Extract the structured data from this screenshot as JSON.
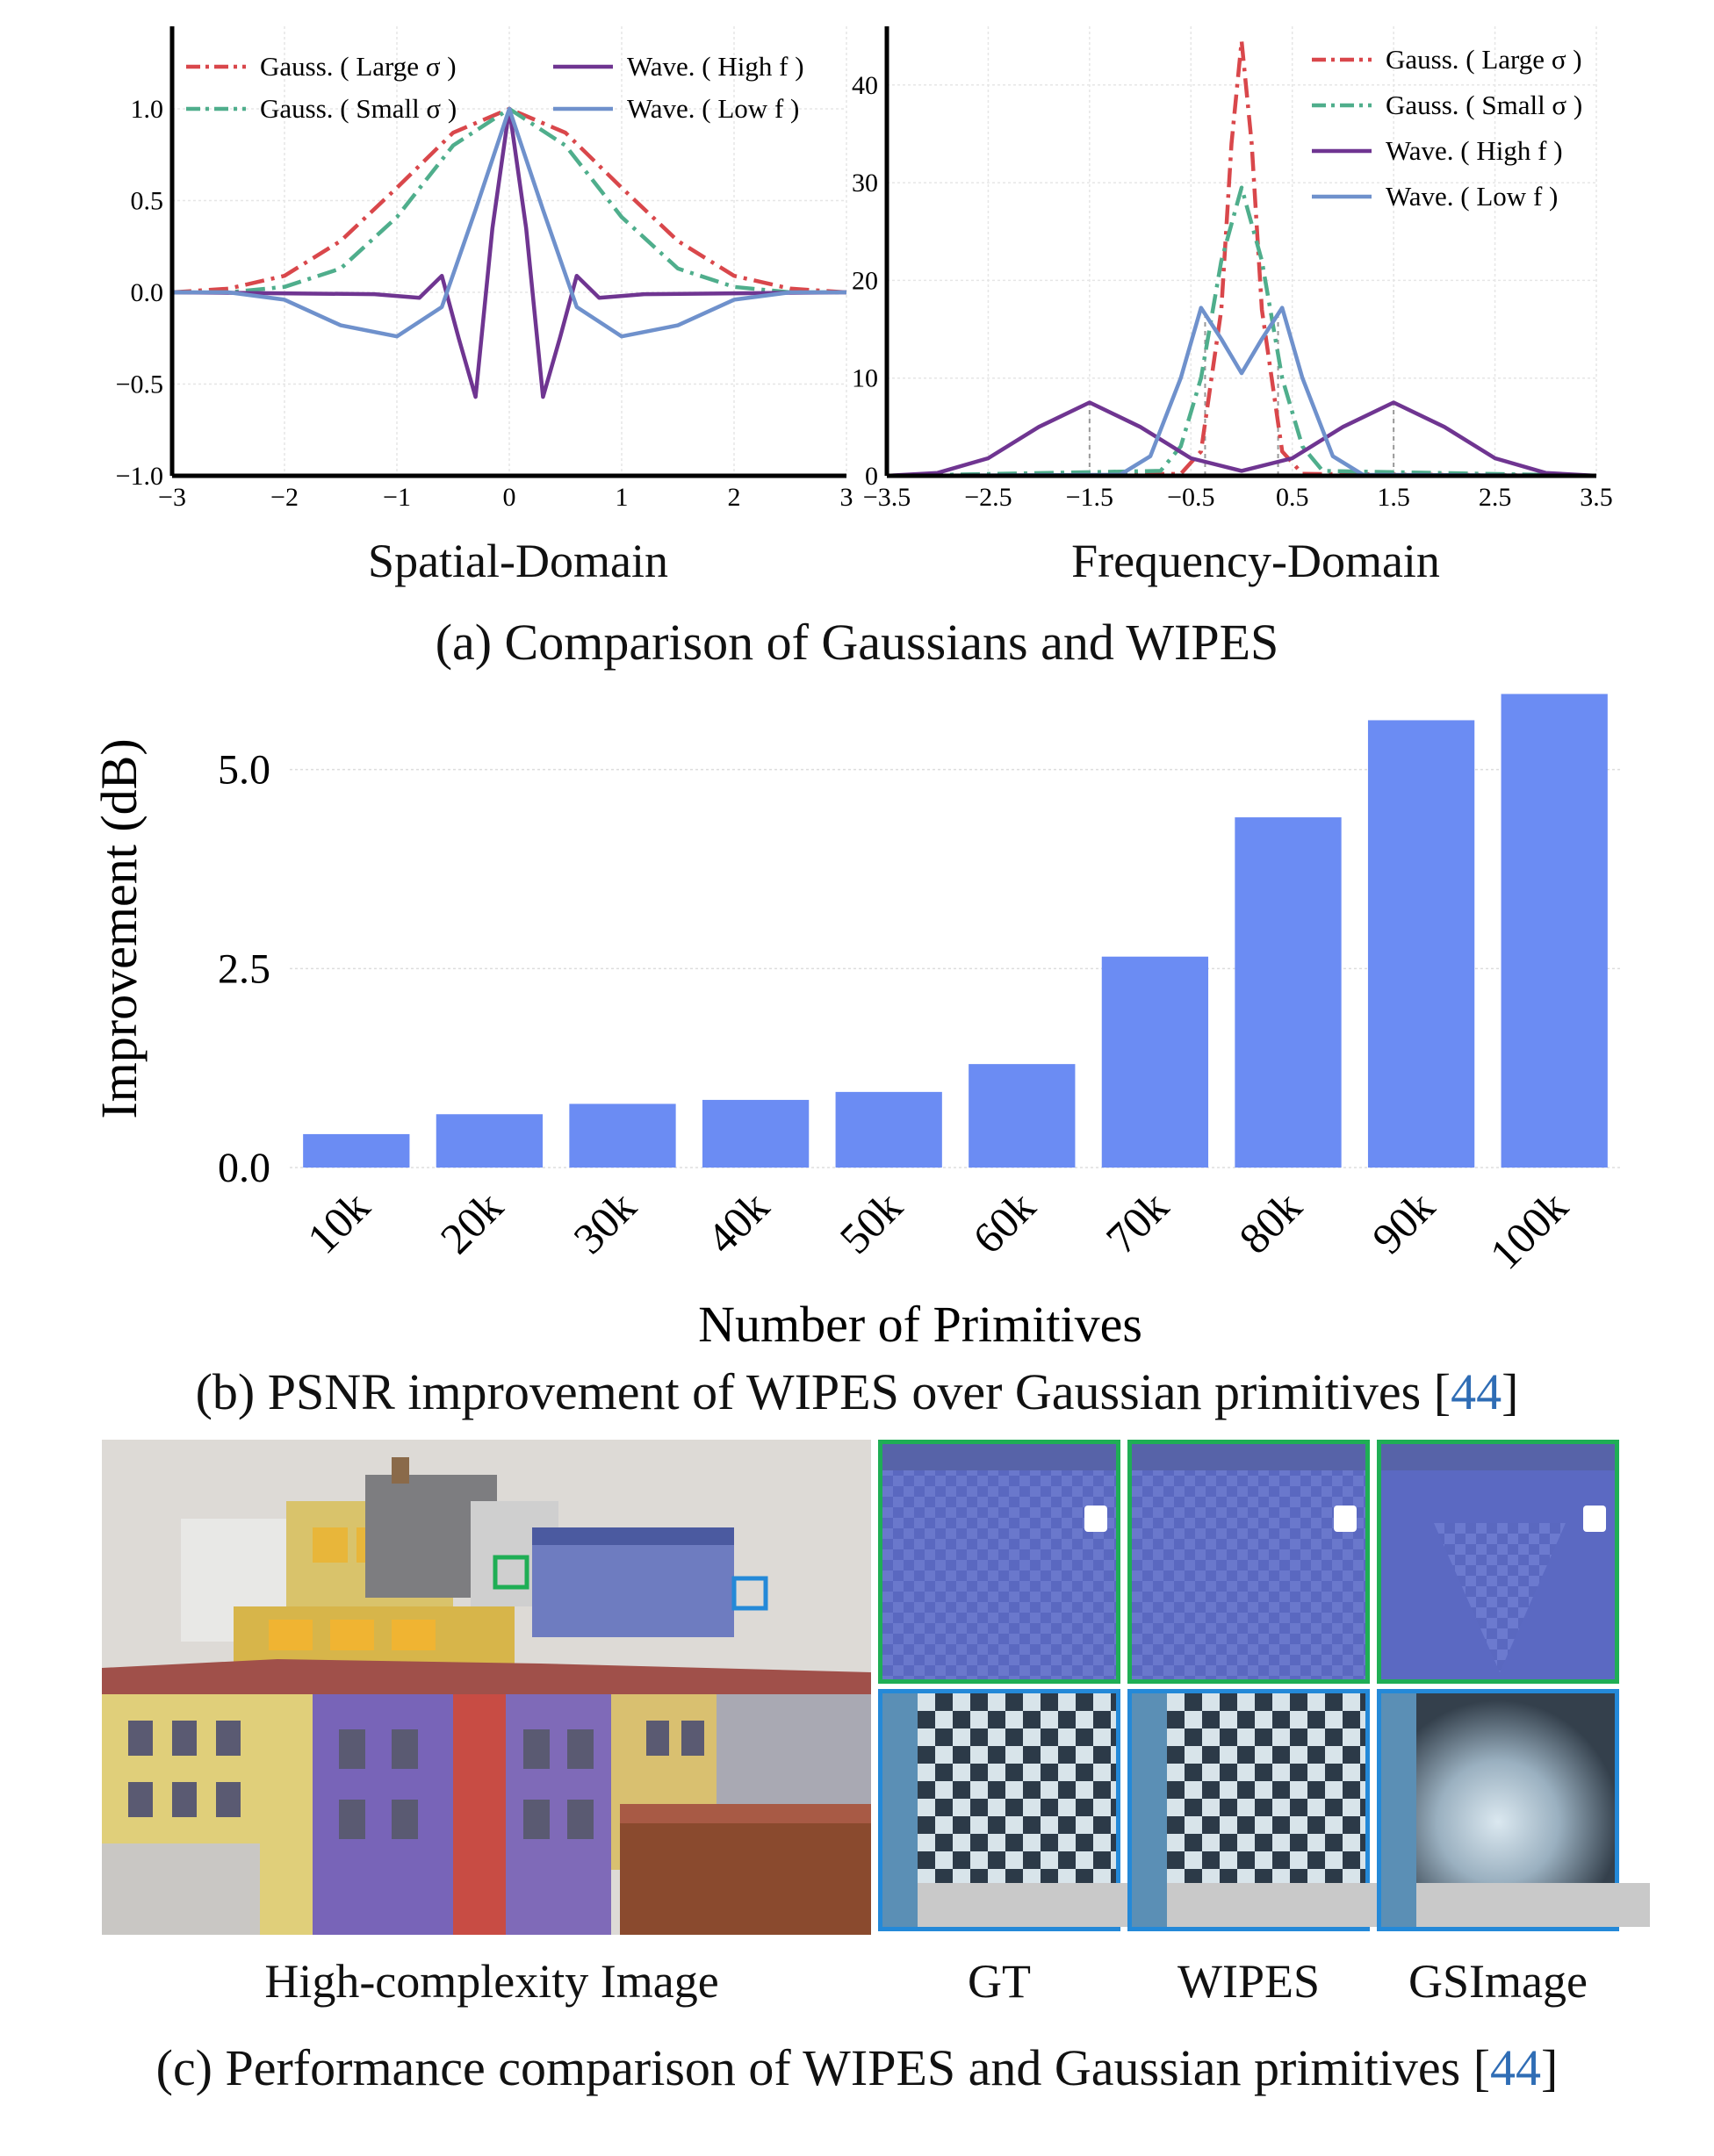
{
  "panel_a": {
    "caption": "(a) Comparison of Gaussians and WIPES",
    "spatial_title": "Spatial-Domain",
    "frequency_title": "Frequency-Domain"
  },
  "panel_b": {
    "caption_prefix": "(b) PSNR improvement of WIPES over Gaussian primitives [",
    "caption_ref": "44",
    "caption_suffix": "]"
  },
  "panel_c": {
    "caption_prefix": "(c) Performance comparison of WIPES and Gaussian primitives [",
    "caption_ref": "44",
    "caption_suffix": "]",
    "image_label": "High-complexity Image",
    "labels": [
      "GT",
      "WIPES",
      "GSImage"
    ]
  },
  "colors": {
    "gauss_large": "#d9474b",
    "gauss_small": "#4fae8c",
    "wave_high": "#6f3591",
    "wave_low": "#6f91cc",
    "bar": "#6b8cf3",
    "green_box": "#1fae55",
    "blue_box": "#2489d8"
  },
  "chart_data": [
    {
      "type": "line",
      "title": "Spatial-Domain",
      "xlim": [
        -3,
        3
      ],
      "ylim": [
        -1.0,
        1.45
      ],
      "xticks": [
        -3,
        -2,
        -1,
        0,
        1,
        2,
        3
      ],
      "xtick_labels": [
        "−3",
        "−2",
        "−1",
        "0",
        "1",
        "2",
        "3"
      ],
      "yticks": [
        -1.0,
        -0.5,
        0.0,
        0.5,
        1.0
      ],
      "ytick_labels": [
        "−1.0",
        "−0.5",
        "0.0",
        "0.5",
        "1.0"
      ],
      "legend": [
        "Gauss. ( Large σ )",
        "Gauss. ( Small σ )",
        "Wave. ( High f )",
        "Wave. ( Low f )"
      ],
      "series": [
        {
          "name": "Gauss. ( Large σ )",
          "color": "#d9474b",
          "dash": "dashdot",
          "x": [
            -3,
            -2.5,
            -2,
            -1.5,
            -1,
            -0.5,
            0,
            0.5,
            1,
            1.5,
            2,
            2.5,
            3
          ],
          "y": [
            0.0,
            0.02,
            0.09,
            0.28,
            0.57,
            0.87,
            1.0,
            0.87,
            0.57,
            0.28,
            0.09,
            0.02,
            0.0
          ]
        },
        {
          "name": "Gauss. ( Small σ )",
          "color": "#4fae8c",
          "dash": "dashdot",
          "x": [
            -3,
            -2.5,
            -2,
            -1.5,
            -1,
            -0.5,
            0,
            0.5,
            1,
            1.5,
            2,
            2.5,
            3
          ],
          "y": [
            0.0,
            0.0,
            0.03,
            0.13,
            0.41,
            0.8,
            1.0,
            0.8,
            0.41,
            0.13,
            0.03,
            0.0,
            0.0
          ]
        },
        {
          "name": "Wave. ( High f )",
          "color": "#6f3591",
          "dash": "solid",
          "x": [
            -3,
            -1.2,
            -0.8,
            -0.6,
            -0.45,
            -0.3,
            -0.15,
            0,
            0.15,
            0.3,
            0.45,
            0.6,
            0.8,
            1.2,
            3
          ],
          "y": [
            0.0,
            -0.01,
            -0.03,
            0.09,
            -0.25,
            -0.57,
            0.35,
            1.0,
            0.35,
            -0.57,
            -0.25,
            0.09,
            -0.03,
            -0.01,
            0.0
          ]
        },
        {
          "name": "Wave. ( Low f )",
          "color": "#6f91cc",
          "dash": "solid",
          "x": [
            -3,
            -2.5,
            -2,
            -1.5,
            -1,
            -0.6,
            -0.3,
            0,
            0.3,
            0.6,
            1,
            1.5,
            2,
            2.5,
            3
          ],
          "y": [
            0.0,
            0.0,
            -0.04,
            -0.18,
            -0.24,
            -0.08,
            0.45,
            1.0,
            0.45,
            -0.08,
            -0.24,
            -0.18,
            -0.04,
            0.0,
            0.0
          ]
        }
      ]
    },
    {
      "type": "line",
      "title": "Frequency-Domain",
      "xlim": [
        -3.5,
        3.5
      ],
      "ylim": [
        0,
        46
      ],
      "xticks": [
        -3.5,
        -2.5,
        -1.5,
        -0.5,
        0.5,
        1.5,
        2.5,
        3.5
      ],
      "xtick_labels": [
        "−3.5",
        "−2.5",
        "−1.5",
        "−0.5",
        "0.5",
        "1.5",
        "2.5",
        "3.5"
      ],
      "yticks": [
        0,
        10,
        20,
        30,
        40
      ],
      "ytick_labels": [
        "0",
        "10",
        "20",
        "30",
        "40"
      ],
      "legend": [
        "Gauss. ( Large σ )",
        "Gauss. ( Small σ )",
        "Wave. ( High f )",
        "Wave. ( Low f )"
      ],
      "series": [
        {
          "name": "Gauss. ( Large σ )",
          "color": "#d9474b",
          "dash": "dashdot",
          "x": [
            -3.5,
            -0.6,
            -0.4,
            -0.2,
            -0.1,
            0,
            0.1,
            0.2,
            0.4,
            0.6,
            3.5
          ],
          "y": [
            0,
            0.2,
            2.5,
            17,
            34,
            44.5,
            34,
            17,
            2.5,
            0.2,
            0
          ]
        },
        {
          "name": "Gauss. ( Small σ )",
          "color": "#4fae8c",
          "dash": "dashdot",
          "x": [
            -3.5,
            -0.8,
            -0.6,
            -0.4,
            -0.2,
            0,
            0.2,
            0.4,
            0.6,
            0.8,
            3.5
          ],
          "y": [
            0,
            0.5,
            3,
            10,
            22,
            29.5,
            22,
            10,
            3,
            0.5,
            0
          ]
        },
        {
          "name": "Wave. ( High f )",
          "color": "#6f3591",
          "dash": "solid",
          "x": [
            -3.5,
            -3,
            -2.5,
            -2,
            -1.5,
            -1,
            -0.5,
            0,
            0.5,
            1,
            1.5,
            2,
            2.5,
            3,
            3.5
          ],
          "y": [
            0,
            0.3,
            1.8,
            5.0,
            7.5,
            5.0,
            1.8,
            0.5,
            1.8,
            5.0,
            7.5,
            5.0,
            1.8,
            0.3,
            0
          ]
        },
        {
          "name": "Wave. ( Low f )",
          "color": "#6f91cc",
          "dash": "solid",
          "x": [
            -3.5,
            -1.2,
            -0.9,
            -0.6,
            -0.4,
            -0.2,
            0,
            0.2,
            0.4,
            0.6,
            0.9,
            1.2,
            3.5
          ],
          "y": [
            0,
            0.1,
            2,
            10,
            17.2,
            14,
            10.5,
            14,
            17.2,
            10,
            2,
            0.1,
            0
          ]
        }
      ],
      "guides_x": [
        -1.5,
        -0.36,
        0.36,
        1.5
      ]
    },
    {
      "type": "bar",
      "categories": [
        "10k",
        "20k",
        "30k",
        "40k",
        "50k",
        "60k",
        "70k",
        "80k",
        "90k",
        "100k"
      ],
      "values": [
        0.42,
        0.67,
        0.8,
        0.85,
        0.95,
        1.3,
        2.65,
        4.4,
        5.62,
        5.95
      ],
      "ylabel": "Improvement (dB)",
      "xlabel": "Number of Primitives",
      "ylim": [
        0,
        6.0
      ],
      "yticks": [
        0.0,
        2.5,
        5.0
      ],
      "ytick_labels": [
        "0.0",
        "2.5",
        "5.0"
      ],
      "color": "#6b8cf3"
    }
  ]
}
